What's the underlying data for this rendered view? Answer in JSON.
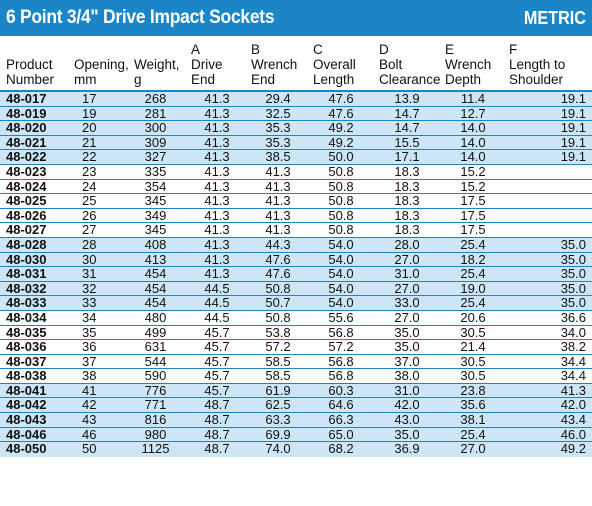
{
  "title": "6 Point 3/4\" Drive Impact Sockets",
  "badge": "METRIC",
  "columns": [
    {
      "line1": "",
      "line2": "Product",
      "line3": "Number"
    },
    {
      "line1": "",
      "line2": "Opening,",
      "line3": "mm"
    },
    {
      "line1": "",
      "line2": "Weight,",
      "line3": "g"
    },
    {
      "line1": "A",
      "line2": "Drive",
      "line3": "End"
    },
    {
      "line1": "B",
      "line2": "Wrench",
      "line3": "End"
    },
    {
      "line1": "C",
      "line2": "Overall",
      "line3": "Length"
    },
    {
      "line1": "D",
      "line2": "Bolt",
      "line3": "Clearance"
    },
    {
      "line1": "E",
      "line2": "Wrench",
      "line3": "Depth"
    },
    {
      "line1": "F",
      "line2": "Length to",
      "line3": "Shoulder"
    }
  ],
  "rows": [
    [
      "48-017",
      "17",
      "268",
      "41.3",
      "29.4",
      "47.6",
      "13.9",
      "11.4",
      "19.1"
    ],
    [
      "48-019",
      "19",
      "281",
      "41.3",
      "32.5",
      "47.6",
      "14.7",
      "12.7",
      "19.1"
    ],
    [
      "48-020",
      "20",
      "300",
      "41.3",
      "35.3",
      "49.2",
      "14.7",
      "14.0",
      "19.1"
    ],
    [
      "48-021",
      "21",
      "309",
      "41.3",
      "35.3",
      "49.2",
      "15.5",
      "14.0",
      "19.1"
    ],
    [
      "48-022",
      "22",
      "327",
      "41.3",
      "38.5",
      "50.0",
      "17.1",
      "14.0",
      "19.1"
    ],
    [
      "48-023",
      "23",
      "335",
      "41.3",
      "41.3",
      "50.8",
      "18.3",
      "15.2",
      ""
    ],
    [
      "48-024",
      "24",
      "354",
      "41.3",
      "41.3",
      "50.8",
      "18.3",
      "15.2",
      ""
    ],
    [
      "48-025",
      "25",
      "345",
      "41.3",
      "41.3",
      "50.8",
      "18.3",
      "17.5",
      ""
    ],
    [
      "48-026",
      "26",
      "349",
      "41.3",
      "41.3",
      "50.8",
      "18.3",
      "17.5",
      ""
    ],
    [
      "48-027",
      "27",
      "345",
      "41.3",
      "41.3",
      "50.8",
      "18.3",
      "17.5",
      ""
    ],
    [
      "48-028",
      "28",
      "408",
      "41.3",
      "44.3",
      "54.0",
      "28.0",
      "25.4",
      "35.0"
    ],
    [
      "48-030",
      "30",
      "413",
      "41.3",
      "47.6",
      "54.0",
      "27.0",
      "18.2",
      "35.0"
    ],
    [
      "48-031",
      "31",
      "454",
      "41.3",
      "47.6",
      "54.0",
      "31.0",
      "25.4",
      "35.0"
    ],
    [
      "48-032",
      "32",
      "454",
      "44.5",
      "50.8",
      "54.0",
      "27.0",
      "19.0",
      "35.0"
    ],
    [
      "48-033",
      "33",
      "454",
      "44.5",
      "50.7",
      "54.0",
      "33.0",
      "25.4",
      "35.0"
    ],
    [
      "48-034",
      "34",
      "480",
      "44.5",
      "50.8",
      "55.6",
      "27.0",
      "20.6",
      "36.6"
    ],
    [
      "48-035",
      "35",
      "499",
      "45.7",
      "53.8",
      "56.8",
      "35.0",
      "30.5",
      "34.0"
    ],
    [
      "48-036",
      "36",
      "631",
      "45.7",
      "57.2",
      "57.2",
      "35.0",
      "21.4",
      "38.2"
    ],
    [
      "48-037",
      "37",
      "544",
      "45.7",
      "58.5",
      "56.8",
      "37.0",
      "30.5",
      "34.4"
    ],
    [
      "48-038",
      "38",
      "590",
      "45.7",
      "58.5",
      "56.8",
      "38.0",
      "30.5",
      "34.4"
    ],
    [
      "48-041",
      "41",
      "776",
      "45.7",
      "61.9",
      "60.3",
      "31.0",
      "23.8",
      "41.3"
    ],
    [
      "48-042",
      "42",
      "771",
      "48.7",
      "62.5",
      "64.6",
      "42.0",
      "35.6",
      "42.0"
    ],
    [
      "48-043",
      "43",
      "816",
      "48.7",
      "63.3",
      "66.3",
      "43.0",
      "38.1",
      "43.4"
    ],
    [
      "48-046",
      "46",
      "980",
      "48.7",
      "69.9",
      "65.0",
      "35.0",
      "25.4",
      "46.0"
    ],
    [
      "48-050",
      "50",
      "1125",
      "48.7",
      "74.0",
      "68.2",
      "36.9",
      "27.0",
      "49.2"
    ]
  ],
  "colors": {
    "accent": "#1a86c8",
    "stripe": "#cde6f6"
  }
}
